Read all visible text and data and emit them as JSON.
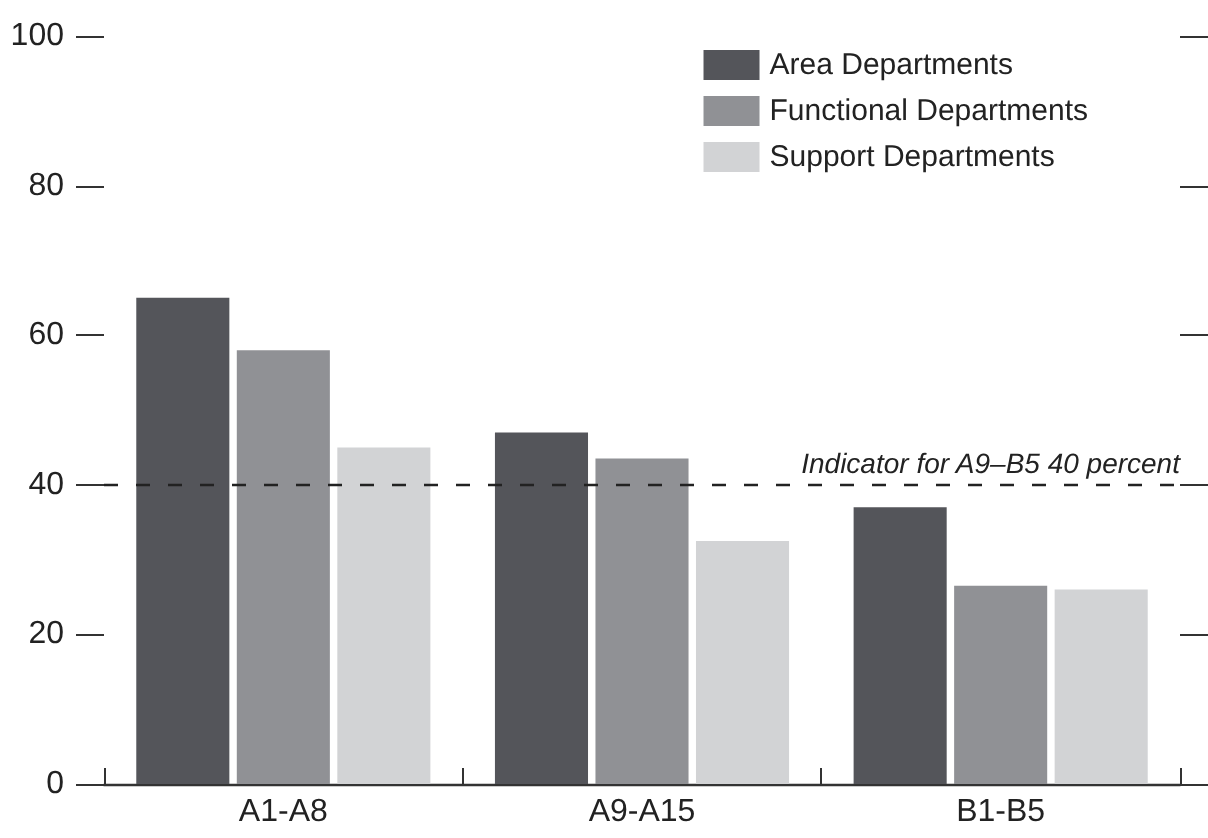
{
  "chart_data": {
    "type": "bar",
    "categories": [
      "A1-A8",
      "A9-A15",
      "B1-B5"
    ],
    "series": [
      {
        "name": "Area Departments",
        "color": "#54555a",
        "values": [
          65,
          47,
          37
        ]
      },
      {
        "name": "Functional Departments",
        "color": "#909195",
        "values": [
          58,
          43.5,
          26.5
        ]
      },
      {
        "name": "Support Departments",
        "color": "#d2d3d5",
        "values": [
          45,
          32.5,
          26
        ]
      }
    ],
    "ylim": [
      0,
      100
    ],
    "yticks": [
      0,
      20,
      40,
      60,
      80,
      100
    ],
    "ref_lines": [
      {
        "axis": "y",
        "value": 40,
        "label": "Indicator for A9–B5 40 percent",
        "color": "#222222",
        "line_style": "dashed"
      }
    ],
    "legend": "top right",
    "grid": false
  }
}
